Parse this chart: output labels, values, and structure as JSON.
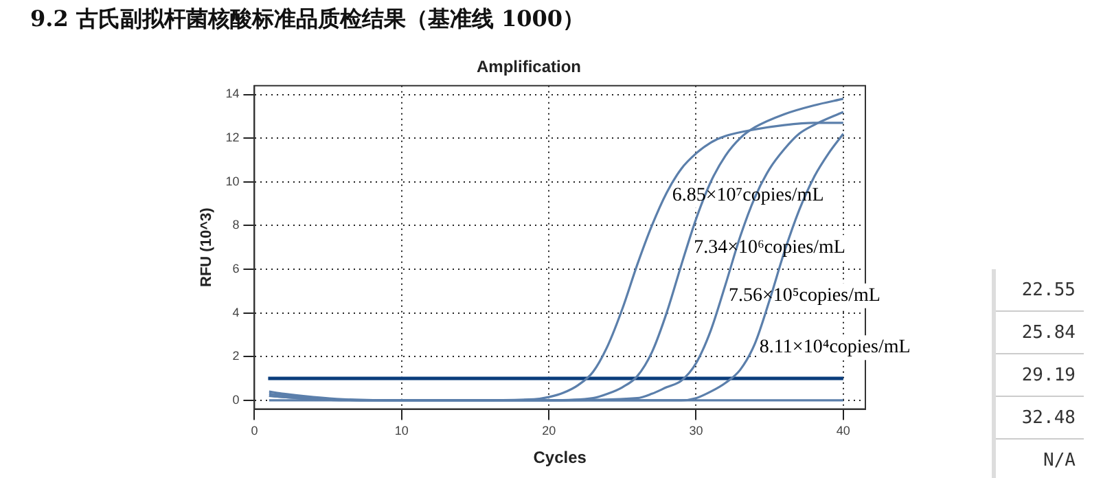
{
  "chart_data": {
    "type": "line",
    "title": "Amplification",
    "subtitle": "9.2 古氏副拟杆菌核酸标准品质检结果（基准线 1000）",
    "xlabel": "Cycles",
    "ylabel": "RFU (10^3)",
    "xlim": [
      0,
      41.5
    ],
    "xticks": [
      0,
      10,
      20,
      30,
      40
    ],
    "ylim": [
      -0.4,
      14.4
    ],
    "yticks": [
      0,
      2,
      4,
      6,
      8,
      10,
      12,
      14
    ],
    "grid": true,
    "legend": false,
    "marker": "none",
    "line_style": "solid",
    "series": [
      {
        "name": "6.85×10⁷copies/mL",
        "color": "#5b7fab",
        "x": [
          1,
          2,
          4,
          6,
          10,
          15,
          19,
          20,
          21,
          22,
          23,
          24,
          25,
          26,
          27,
          28,
          29,
          30,
          31,
          32,
          34,
          36,
          38,
          40
        ],
        "values": [
          0.4,
          0.3,
          0.15,
          0.05,
          0,
          0,
          0.05,
          0.15,
          0.35,
          0.7,
          1.3,
          2.5,
          4.2,
          6.2,
          8,
          9.5,
          10.6,
          11.3,
          11.8,
          12.1,
          12.4,
          12.6,
          12.7,
          12.7
        ]
      },
      {
        "name": "7.34×10⁶copies/mL",
        "color": "#5b7fab",
        "x": [
          1,
          4,
          8,
          20,
          23,
          24,
          25,
          26,
          27,
          28,
          29,
          30,
          31,
          32,
          33,
          34,
          36,
          38,
          40
        ],
        "values": [
          0.3,
          0.1,
          0,
          0,
          0.1,
          0.3,
          0.6,
          1.1,
          2.2,
          4,
          6.2,
          8.3,
          10,
          11.2,
          12,
          12.5,
          13.1,
          13.5,
          13.8
        ]
      },
      {
        "name": "7.56×10⁵copies/mL",
        "color": "#5b7fab",
        "x": [
          1,
          4,
          8,
          20,
          26,
          27,
          28,
          29,
          30,
          31,
          32,
          33,
          34,
          35,
          36,
          37,
          38,
          40
        ],
        "values": [
          0.2,
          0.05,
          0,
          0,
          0.1,
          0.3,
          0.6,
          0.9,
          1.7,
          3.2,
          5.3,
          7.5,
          9.3,
          10.6,
          11.5,
          12.2,
          12.6,
          13.2
        ]
      },
      {
        "name": "8.11×10⁴copies/mL",
        "color": "#5b7fab",
        "x": [
          1,
          4,
          8,
          20,
          29,
          30,
          31,
          32,
          33,
          34,
          35,
          36,
          37,
          38,
          39,
          40
        ],
        "values": [
          0.2,
          0.05,
          0,
          0,
          0,
          0.1,
          0.4,
          0.8,
          1.4,
          2.6,
          4.6,
          6.8,
          8.7,
          10.2,
          11.3,
          12.2
        ]
      },
      {
        "color": "#5b7fab",
        "x": [
          1,
          10,
          20,
          30,
          40
        ],
        "values": [
          0,
          0,
          0,
          0,
          0
        ]
      }
    ],
    "ref_lines": [
      {
        "axis": "y",
        "value": 1,
        "color": "#0b3d7c"
      }
    ],
    "annotations": [
      "22.55",
      "25.84",
      "29.19",
      "32.48",
      "N/A"
    ]
  }
}
